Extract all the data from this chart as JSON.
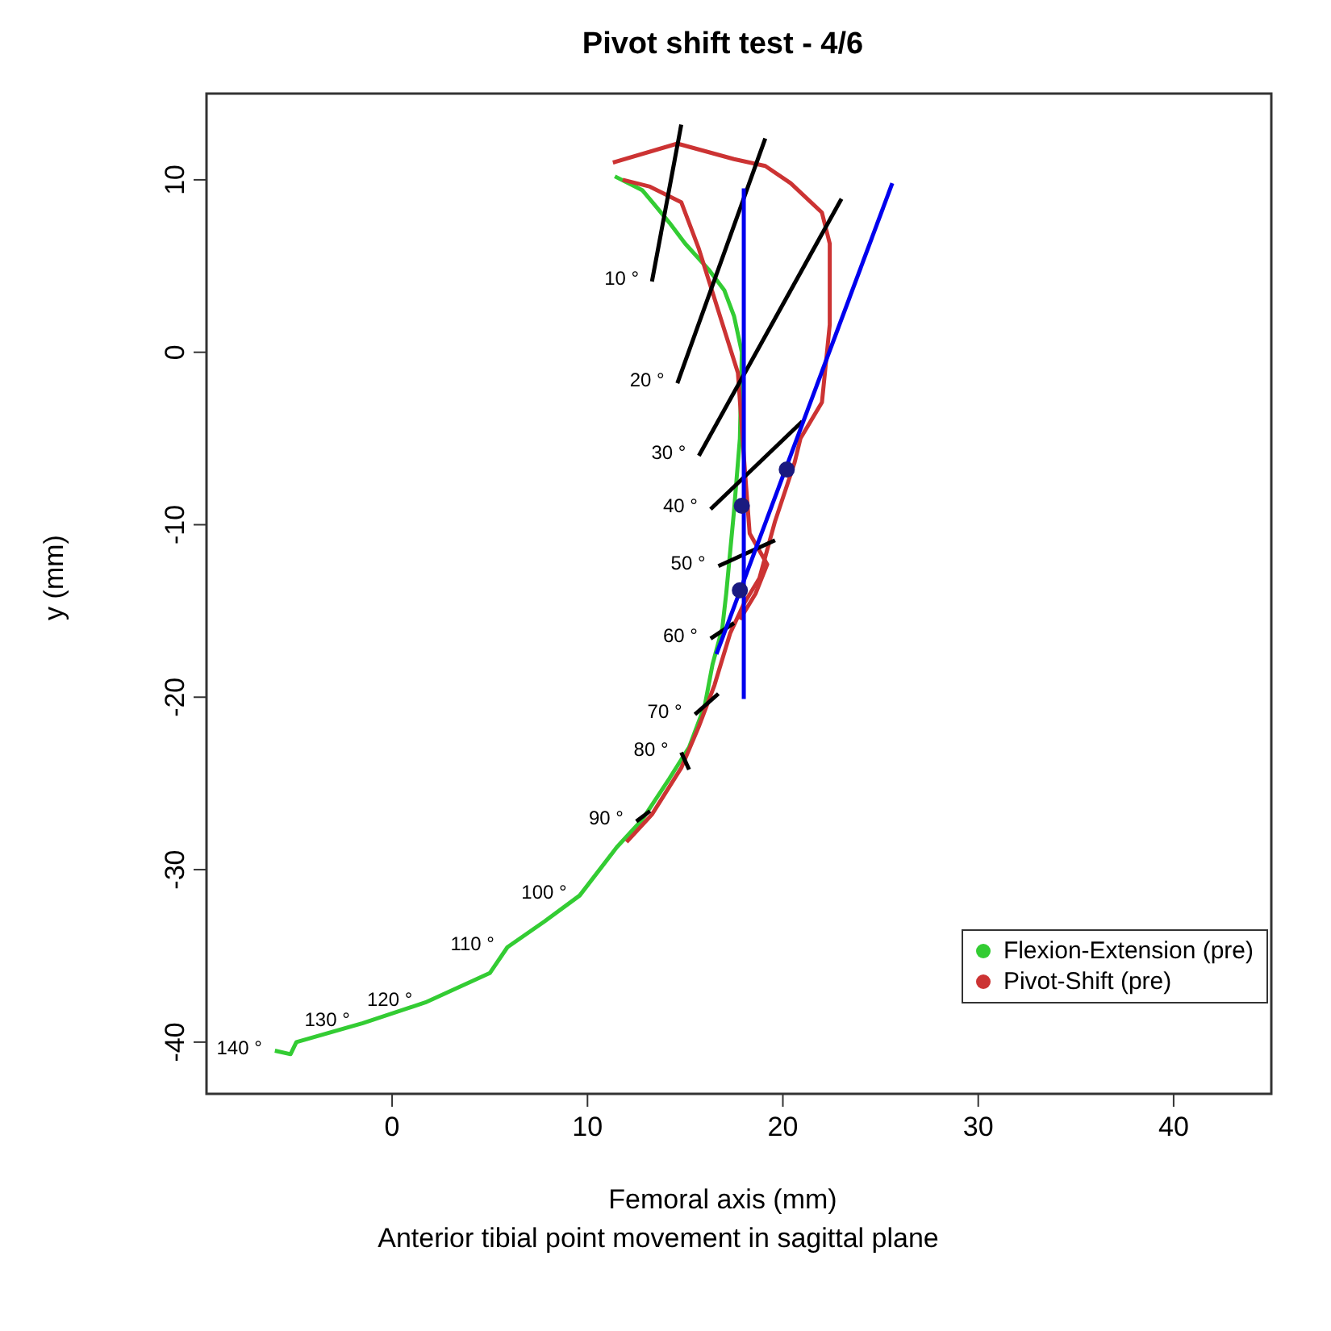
{
  "chart_data": {
    "type": "line",
    "title": "Pivot shift test - 4/6",
    "xlabel": "Femoral axis (mm)",
    "ylabel": "y (mm)",
    "xlim": [
      -9.5,
      45
    ],
    "xticks": [
      0,
      10,
      20,
      30,
      40
    ],
    "ylim": [
      -43,
      15
    ],
    "yticks": [
      -40,
      -30,
      -20,
      -10,
      0,
      10
    ],
    "grid": false,
    "legend": "bottom right",
    "line_style": "solid",
    "series": [
      {
        "name": "Flexion-Extension (pre)",
        "color": "#33cc33",
        "x": [
          11.4,
          12.8,
          13.4,
          14.2,
          15.0,
          16.2,
          17.0,
          17.5,
          17.9,
          17.8,
          17.5,
          17.3,
          17.1,
          16.9,
          16.4,
          16.0,
          15.2,
          14.2,
          12.8,
          11.5,
          9.6,
          7.8,
          5.9,
          5.0,
          1.7,
          -1.5,
          -4.9,
          -5.2,
          -6.0
        ],
        "values": [
          10.2,
          9.4,
          8.6,
          7.5,
          6.3,
          4.8,
          3.6,
          2.1,
          0,
          -5,
          -9.2,
          -11.6,
          -14.0,
          -16.0,
          -18.1,
          -20.5,
          -22.9,
          -24.7,
          -27.1,
          -28.7,
          -31.5,
          -33.0,
          -34.5,
          -36.0,
          -37.7,
          -38.9,
          -40.0,
          -40.7,
          -40.5
        ]
      },
      {
        "name": "Pivot-Shift (pre)",
        "color": "#cc3333",
        "x": [
          11.3,
          14.6,
          17.5,
          19.1,
          20.4,
          22.0,
          22.4,
          22.4,
          22.0,
          20.9,
          20.6,
          19.6,
          18.8,
          18.0,
          17.3,
          16.5,
          15.7,
          14.8,
          13.3,
          12.0
        ],
        "values": [
          11.0,
          12.1,
          11.2,
          10.8,
          9.8,
          8.1,
          6.3,
          1.6,
          -2.9,
          -5.0,
          -6.4,
          -9.8,
          -13.1,
          -14.6,
          -16.3,
          -19.3,
          -21.7,
          -24.1,
          -26.8,
          -28.4
        ]
      },
      {
        "color": "#cc3333",
        "x": [
          11.8,
          13.2,
          14.8,
          15.7,
          16.7,
          17.7,
          18.0,
          18.3,
          19.2,
          18.6,
          17.8
        ],
        "values": [
          10.0,
          9.6,
          8.7,
          6.0,
          2.4,
          -1.2,
          -6,
          -10.5,
          -12.3,
          -14.0,
          -15.5
        ]
      },
      {
        "color": "#000000",
        "x": [
          13.3,
          14.8
        ],
        "values": [
          4.1,
          13.2
        ]
      },
      {
        "color": "#000000",
        "x": [
          14.6,
          19.1
        ],
        "values": [
          -1.8,
          12.4
        ]
      },
      {
        "color": "#000000",
        "x": [
          15.7,
          23.0
        ],
        "values": [
          -6.0,
          8.9
        ]
      },
      {
        "color": "#000000",
        "x": [
          16.3,
          21.0
        ],
        "values": [
          -9.1,
          -4.0
        ]
      },
      {
        "color": "#000000",
        "x": [
          16.7,
          19.6
        ],
        "values": [
          -12.4,
          -10.9
        ]
      },
      {
        "color": "#000000",
        "x": [
          16.3,
          17.5
        ],
        "values": [
          -16.6,
          -15.7
        ]
      },
      {
        "color": "#000000",
        "x": [
          15.5,
          16.7
        ],
        "values": [
          -21.0,
          -19.8
        ]
      },
      {
        "color": "#000000",
        "x": [
          14.8,
          15.2
        ],
        "values": [
          -23.2,
          -24.2
        ]
      },
      {
        "color": "#000000",
        "x": [
          12.5,
          13.2
        ],
        "values": [
          -27.2,
          -26.6
        ]
      },
      {
        "color": "#0000ee",
        "x": [
          18.0,
          18.0
        ],
        "values": [
          9.5,
          -20.1
        ]
      },
      {
        "color": "#0000ee",
        "x": [
          25.6,
          16.6
        ],
        "values": [
          9.8,
          -17.5
        ]
      },
      {
        "type": "scatter",
        "marker": "circle",
        "color": "#1a1a80",
        "x": [
          20.2,
          17.9,
          17.8
        ],
        "values": [
          -6.8,
          -8.9,
          -13.8
        ]
      }
    ],
    "annotations": [
      {
        "text": "10 °",
        "x": 13.3,
        "y": 4.1
      },
      {
        "text": "20 °",
        "x": 14.6,
        "y": -1.8
      },
      {
        "text": "30 °",
        "x": 15.7,
        "y": -6.0
      },
      {
        "text": "40 °",
        "x": 16.3,
        "y": -9.1
      },
      {
        "text": "50 °",
        "x": 16.7,
        "y": -12.4
      },
      {
        "text": "60 °",
        "x": 16.3,
        "y": -16.6
      },
      {
        "text": "70 °",
        "x": 15.5,
        "y": -21.0
      },
      {
        "text": "80 °",
        "x": 14.8,
        "y": -23.2
      },
      {
        "text": "90 °",
        "x": 12.5,
        "y": -27.2
      },
      {
        "text": "100 °",
        "x": 9.6,
        "y": -31.5
      },
      {
        "text": "110 °",
        "x": 5.9,
        "y": -34.5
      },
      {
        "text": "120 °",
        "x": 1.7,
        "y": -37.7
      },
      {
        "text": "130 °",
        "x": -1.5,
        "y": -38.9
      },
      {
        "text": "140 °",
        "x": -6.0,
        "y": -40.5
      },
      "Anterior tibial point movement in sagittal plane"
    ]
  }
}
